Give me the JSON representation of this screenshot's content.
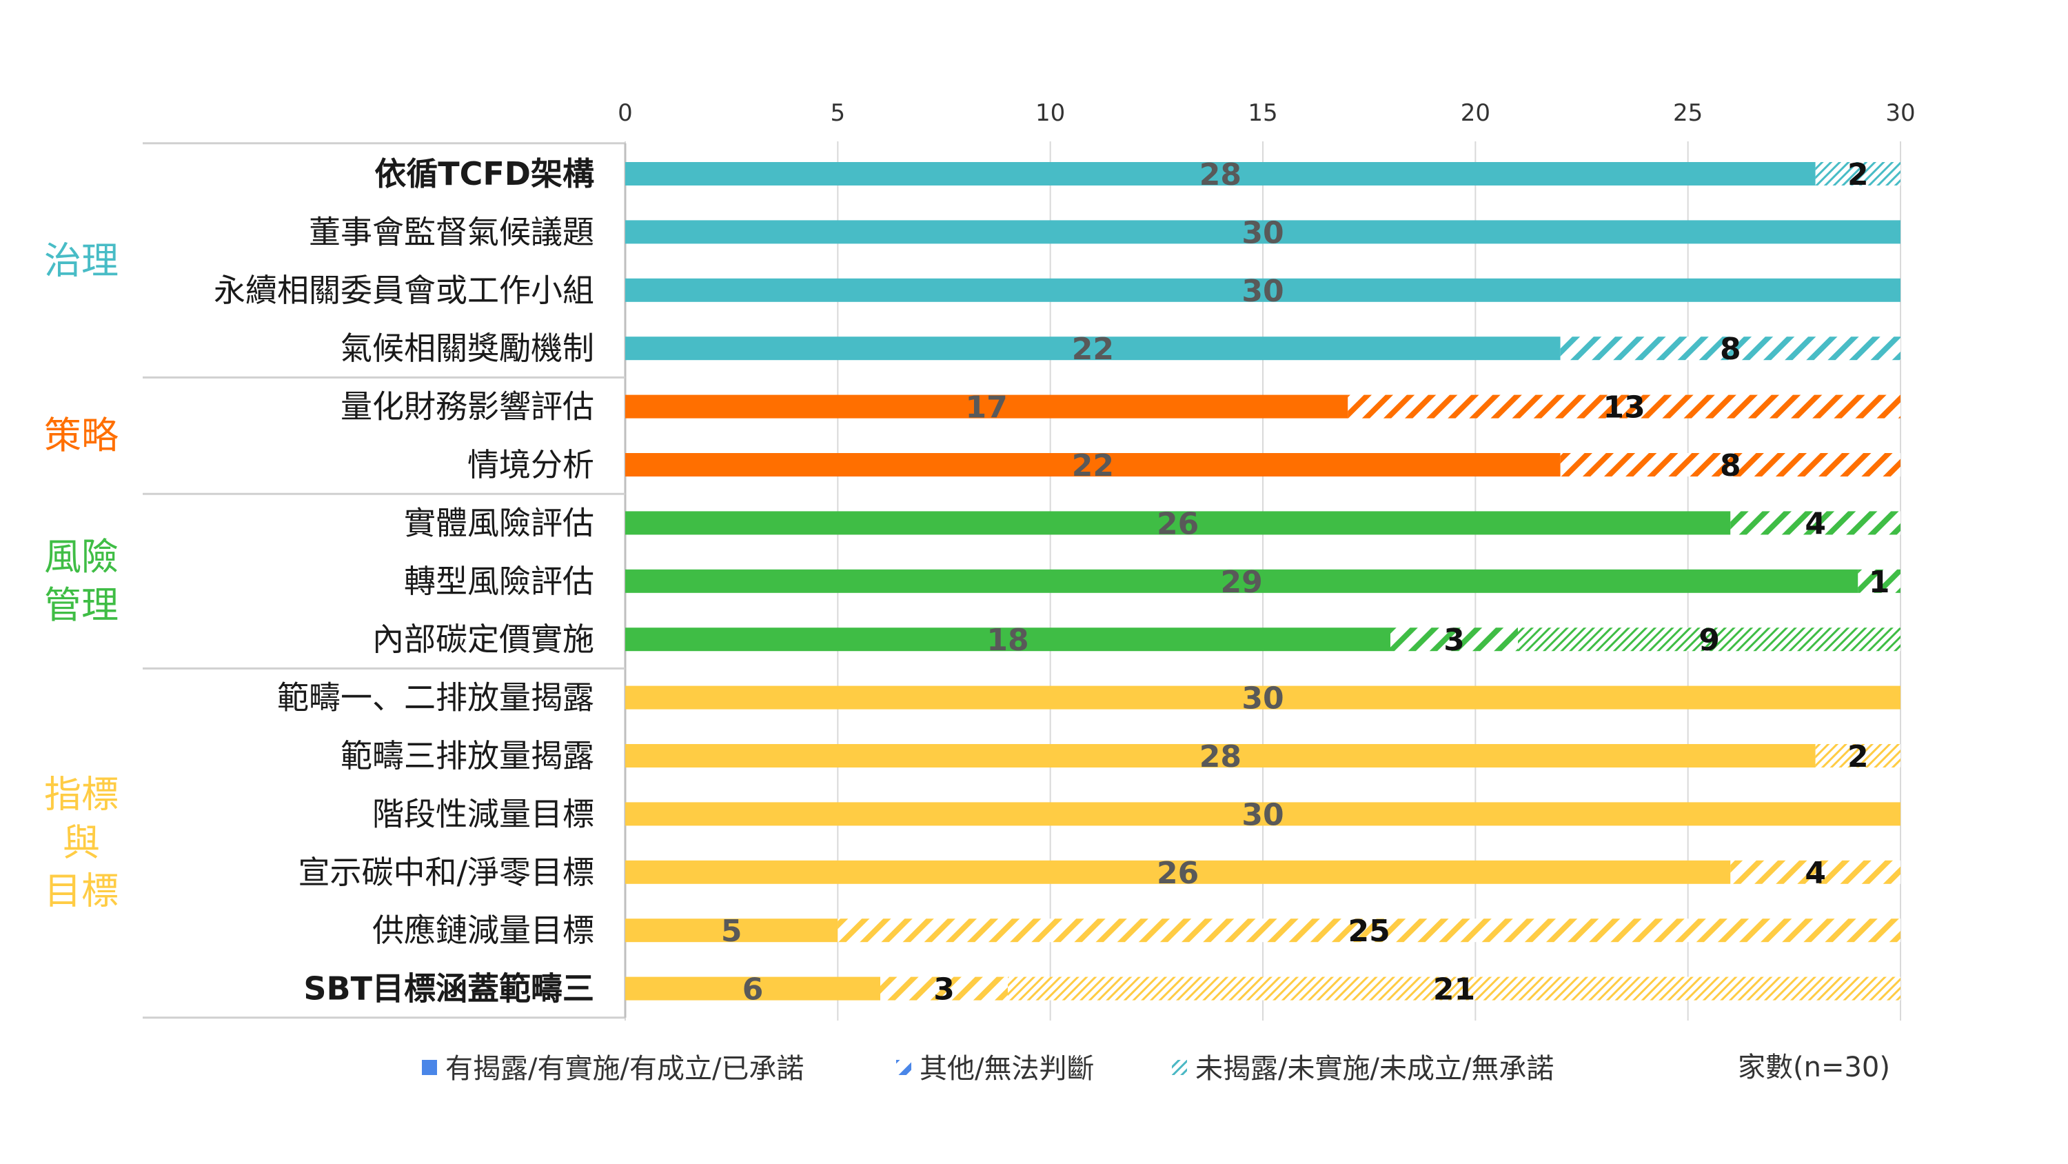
{
  "chart_data": {
    "type": "bar",
    "orientation": "horizontal",
    "stacked": true,
    "xlim": [
      0,
      30
    ],
    "xticks": [
      "0",
      "5",
      "10",
      "15",
      "20",
      "25",
      "30"
    ],
    "unit_label": "家數(n=30)",
    "legend": [
      {
        "name": "有揭露/有實施/有成立/已承諾",
        "pattern": "solid"
      },
      {
        "name": "其他/無法判斷",
        "pattern": "wide-hatch"
      },
      {
        "name": "未揭露/未實施/未成立/無承諾",
        "pattern": "fine-hatch"
      }
    ],
    "legend_colors": {
      "solid": "#4a86e8",
      "wide-hatch": "#4a86e8",
      "fine-hatch": "#4ab8c4"
    },
    "groups": [
      {
        "name": "治理",
        "color": "#48bcc6",
        "rows": [
          0,
          3
        ]
      },
      {
        "name": "策略",
        "color": "#ff6f00",
        "rows": [
          4,
          5
        ]
      },
      {
        "name": "風險\n管理",
        "color": "#3fbd45",
        "rows": [
          6,
          8
        ]
      },
      {
        "name": "指標\n與\n目標",
        "color": "#ffcc44",
        "rows": [
          9,
          14
        ]
      }
    ],
    "categories": [
      "依循TCFD架構",
      "董事會監督氣候議題",
      "永續相關委員會或工作小組",
      "氣候相關獎勵機制",
      "量化財務影響評估",
      "情境分析",
      "實體風險評估",
      "轉型風險評估",
      "內部碳定價實施",
      "範疇一、二排放量揭露",
      "範疇三排放量揭露",
      "階段性減量目標",
      "宣示碳中和/淨零目標",
      "供應鏈減量目標",
      "SBT目標涵蓋範疇三"
    ],
    "series": [
      {
        "name": "有揭露/有實施/有成立/已承諾",
        "values": [
          28,
          30,
          30,
          22,
          17,
          22,
          26,
          29,
          18,
          30,
          28,
          30,
          26,
          5,
          6
        ]
      },
      {
        "name": "其他/無法判斷",
        "values": [
          0,
          0,
          0,
          0,
          0,
          0,
          0,
          0,
          3,
          0,
          0,
          0,
          0,
          0,
          3
        ]
      },
      {
        "name": "未揭露/未實施/未成立/無承諾",
        "values": [
          2,
          0,
          0,
          8,
          13,
          8,
          4,
          1,
          9,
          0,
          2,
          0,
          4,
          25,
          21
        ]
      }
    ],
    "segment_patterns": [
      [
        "solid",
        "",
        "fine"
      ],
      [
        "solid",
        "",
        ""
      ],
      [
        "solid",
        "",
        ""
      ],
      [
        "solid",
        "",
        "wide"
      ],
      [
        "solid",
        "",
        "wide"
      ],
      [
        "solid",
        "",
        "wide"
      ],
      [
        "solid",
        "",
        "wide"
      ],
      [
        "solid",
        "",
        "wide"
      ],
      [
        "solid",
        "wide",
        "fine"
      ],
      [
        "solid",
        "",
        ""
      ],
      [
        "solid",
        "",
        "fine"
      ],
      [
        "solid",
        "",
        ""
      ],
      [
        "solid",
        "",
        "wide"
      ],
      [
        "solid",
        "",
        "wide"
      ],
      [
        "solid",
        "wide",
        "fine"
      ]
    ]
  }
}
